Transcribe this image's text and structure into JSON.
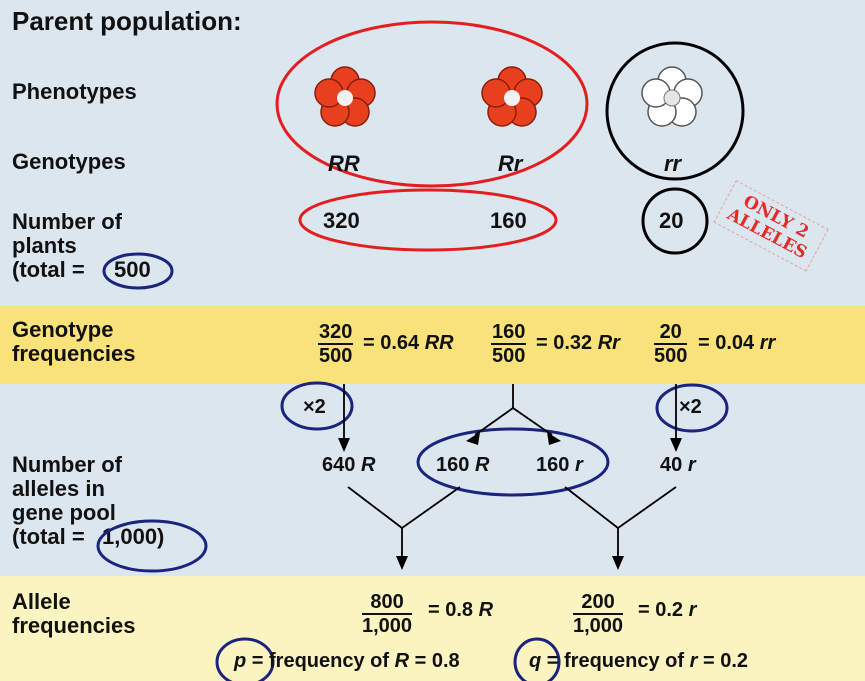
{
  "title": "Parent population:",
  "rows": {
    "phenotypes": "Phenotypes",
    "genotypes": "Genotypes",
    "number_of_plants": "Number of\nplants\n(total =",
    "total_plants": "500",
    "genotype_frequencies": "Genotype\nfrequencies",
    "number_of_alleles": "Number of\nalleles in\ngene pool\n(total =",
    "total_alleles": "1,000)",
    "allele_frequencies": "Allele\nfrequencies"
  },
  "genotypes": [
    "RR",
    "Rr",
    "rr"
  ],
  "plant_counts": [
    "320",
    "160",
    "20"
  ],
  "genotype_freqs": [
    {
      "num": "320",
      "den": "500",
      "value": "= 0.64",
      "geno": "RR"
    },
    {
      "num": "160",
      "den": "500",
      "value": "= 0.32",
      "geno": "Rr"
    },
    {
      "num": "20",
      "den": "500",
      "value": "= 0.04",
      "geno": "rr"
    }
  ],
  "multipliers": [
    "×2",
    "×2"
  ],
  "allele_counts": [
    {
      "n": "640",
      "a": "R"
    },
    {
      "n": "160",
      "a": "R"
    },
    {
      "n": "160",
      "a": "r"
    },
    {
      "n": "40",
      "a": "r"
    }
  ],
  "allele_freqs": [
    {
      "num": "800",
      "den": "1,000",
      "value": "= 0.8",
      "allele": "R"
    },
    {
      "num": "200",
      "den": "1,000",
      "value": "= 0.2",
      "allele": "r"
    }
  ],
  "summary": {
    "p_symbol": "p",
    "p_text": "= frequency of",
    "p_allele": "R",
    "p_value": "= 0.8",
    "q_symbol": "q",
    "q_text": "= frequency of",
    "q_allele": "r",
    "q_value": "= 0.2"
  },
  "stamp": {
    "line1": "ONLY 2",
    "line2": "ALLELES"
  },
  "colors": {
    "background": "#dce6ef",
    "yellow_band": "#f9e27a",
    "light_yellow_band": "#fbf3c0",
    "red_flower": "#e8401f",
    "red_circle": "#e41e1e",
    "blue_circle": "#1a237e",
    "black_circle": "#000000"
  }
}
